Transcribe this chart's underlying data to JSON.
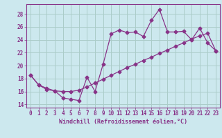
{
  "xlabel": "Windchill (Refroidissement éolien,°C)",
  "xlim": [
    -0.5,
    23.5
  ],
  "ylim": [
    13.5,
    29.5
  ],
  "xticks": [
    0,
    1,
    2,
    3,
    4,
    5,
    6,
    7,
    8,
    9,
    10,
    11,
    12,
    13,
    14,
    15,
    16,
    17,
    18,
    19,
    20,
    21,
    22,
    23
  ],
  "yticks": [
    14,
    16,
    18,
    20,
    22,
    24,
    26,
    28
  ],
  "bg_color": "#cce8ee",
  "grid_color": "#aaccc8",
  "line_color": "#883388",
  "line1_x": [
    0,
    1,
    2,
    3,
    4,
    5,
    6,
    7,
    8,
    9,
    10,
    11,
    12,
    13,
    14,
    15,
    16,
    17,
    18,
    19,
    20,
    21,
    22,
    23
  ],
  "line1_y": [
    18.5,
    17.0,
    16.5,
    16.1,
    15.0,
    14.8,
    14.6,
    18.2,
    16.0,
    20.2,
    24.9,
    25.5,
    25.1,
    25.2,
    24.5,
    27.0,
    28.7,
    25.2,
    25.2,
    25.3,
    24.0,
    25.8,
    23.5,
    22.3
  ],
  "line2_x": [
    0,
    1,
    2,
    3,
    4,
    5,
    6,
    7,
    8,
    9,
    10,
    11,
    12,
    13,
    14,
    15,
    16,
    17,
    18,
    19,
    20,
    21,
    22,
    23
  ],
  "line2_y": [
    18.5,
    17.0,
    16.3,
    16.1,
    16.0,
    16.0,
    16.2,
    16.7,
    17.3,
    17.9,
    18.5,
    19.1,
    19.7,
    20.2,
    20.8,
    21.3,
    21.9,
    22.4,
    23.0,
    23.5,
    24.1,
    24.6,
    25.0,
    22.3
  ],
  "marker": "D",
  "marker_size": 2.5,
  "linewidth": 0.9,
  "tick_fontsize": 5.5,
  "label_fontsize": 6.0
}
